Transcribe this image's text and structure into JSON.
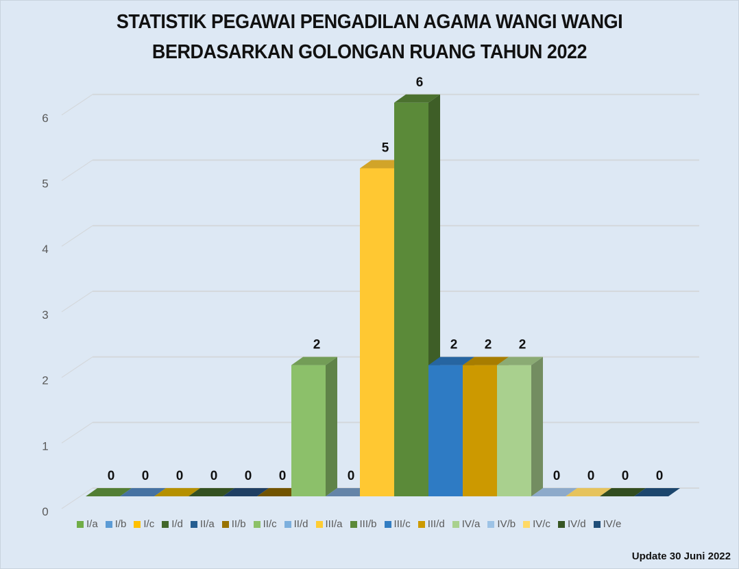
{
  "chart_data": {
    "type": "bar",
    "style": "3d-column",
    "title": "STATISTIK PEGAWAI PENGADILAN AGAMA WANGI WANGI BERDASARKAN GOLONGAN RUANG TAHUN 2022",
    "title_lines": [
      "STATISTIK PEGAWAI PENGADILAN AGAMA WANGI WANGI",
      "BERDASARKAN GOLONGAN RUANG TAHUN 2022"
    ],
    "xlabel": "",
    "ylabel": "",
    "ylim": [
      0,
      6
    ],
    "yticks": [
      0,
      1,
      2,
      3,
      4,
      5,
      6
    ],
    "grid": true,
    "legend_position": "bottom",
    "categories": [
      "I/a",
      "I/b",
      "I/c",
      "I/d",
      "II/a",
      "II/b",
      "II/c",
      "II/d",
      "III/a",
      "III/b",
      "III/c",
      "III/d",
      "IV/a",
      "IV/b",
      "IV/c",
      "IV/d",
      "IV/e"
    ],
    "values": [
      0,
      0,
      0,
      0,
      0,
      0,
      2,
      0,
      5,
      6,
      2,
      2,
      2,
      0,
      0,
      0,
      0
    ],
    "data_labels": [
      "0",
      "0",
      "0",
      "0",
      "0",
      "0",
      "2",
      "0",
      "5",
      "6",
      "2",
      "2",
      "2",
      "0",
      "0",
      "0",
      "0"
    ],
    "colors": [
      "#5b8c3a",
      "#4e7fb4",
      "#c9a000",
      "#3a5a25",
      "#22466e",
      "#7e5c00",
      "#8cc06a",
      "#6f93bb",
      "#ffc832",
      "#5b8a39",
      "#2e7bc4",
      "#cc9900",
      "#a9d08e",
      "#9dbde0",
      "#ffd966",
      "#375623",
      "#1f4e79"
    ],
    "legend": [
      "I/a",
      "I/b",
      "I/c",
      "I/d",
      "II/a",
      "II/b",
      "II/c",
      "II/d",
      "III/a",
      "III/b",
      "III/c",
      "III/d",
      "IV/a",
      "IV/b",
      "IV/c",
      "IV/d",
      "IV/e"
    ],
    "legend_colors": [
      "#70ad47",
      "#5b9bd5",
      "#ffc000",
      "#43682b",
      "#255e91",
      "#997300",
      "#8cc168",
      "#7cafdd",
      "#ffcd33",
      "#5b8a39",
      "#327dc2",
      "#cc9a00",
      "#a9d18e",
      "#9dc3e6",
      "#ffd966",
      "#375623",
      "#1f4e79"
    ],
    "annotations": [
      "Update 30 Juni 2022"
    ]
  },
  "footnote": "Update 30 Juni 2022"
}
